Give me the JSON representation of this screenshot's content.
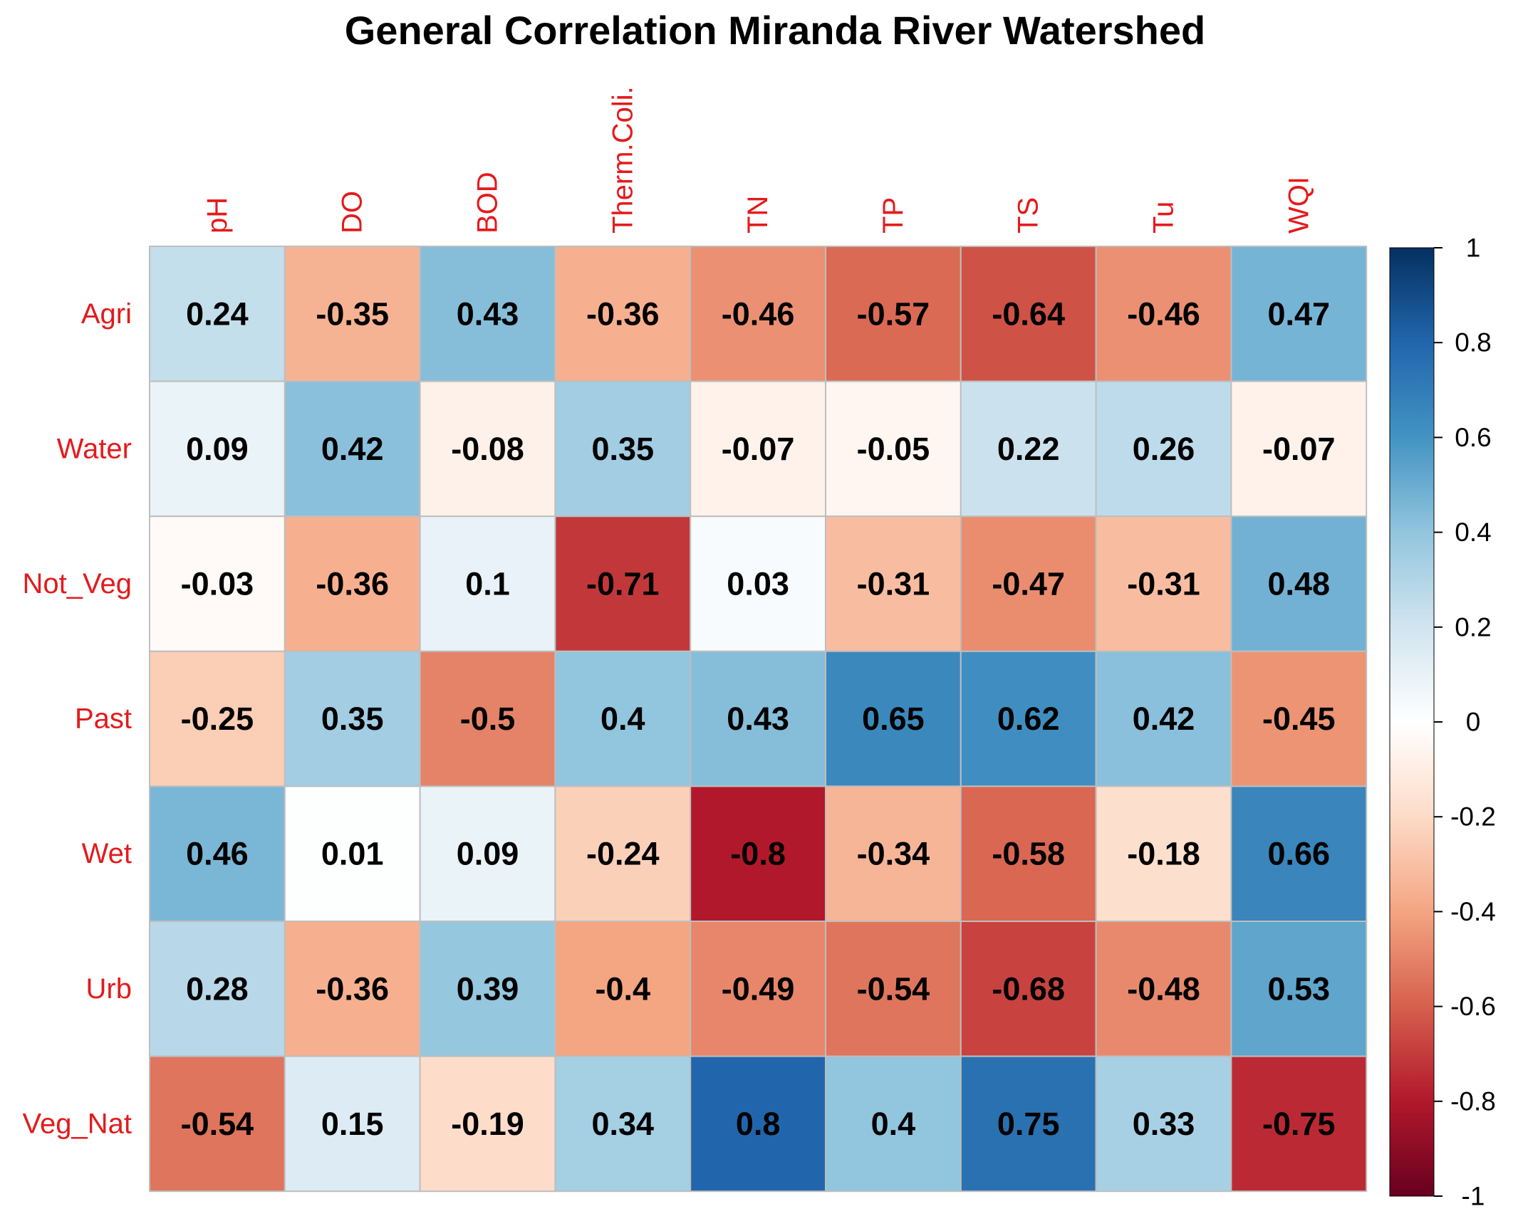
{
  "chart_data": {
    "type": "heatmap",
    "title": "General Correlation Miranda River Watershed",
    "columns": [
      "pH",
      "DO",
      "BOD",
      "Therm.Coli.",
      "TN",
      "TP",
      "TS",
      "Tu",
      "WQI"
    ],
    "rows": [
      "Agri",
      "Water",
      "Not_Veg",
      "Past",
      "Wet",
      "Urb",
      "Veg_Nat"
    ],
    "values": [
      [
        0.24,
        -0.35,
        0.43,
        -0.36,
        -0.46,
        -0.57,
        -0.64,
        -0.46,
        0.47
      ],
      [
        0.09,
        0.42,
        -0.08,
        0.35,
        -0.07,
        -0.05,
        0.22,
        0.26,
        -0.07
      ],
      [
        -0.03,
        -0.36,
        0.1,
        -0.71,
        0.03,
        -0.31,
        -0.47,
        -0.31,
        0.48
      ],
      [
        -0.25,
        0.35,
        -0.5,
        0.4,
        0.43,
        0.65,
        0.62,
        0.42,
        -0.45
      ],
      [
        0.46,
        0.01,
        0.09,
        -0.24,
        -0.8,
        -0.34,
        -0.58,
        -0.18,
        0.66
      ],
      [
        0.28,
        -0.36,
        0.39,
        -0.4,
        -0.49,
        -0.54,
        -0.68,
        -0.48,
        0.53
      ],
      [
        -0.54,
        0.15,
        -0.19,
        0.34,
        0.8,
        0.4,
        0.75,
        0.33,
        -0.75
      ]
    ],
    "value_labels": [
      [
        "0.24",
        "-0.35",
        "0.43",
        "-0.36",
        "-0.46",
        "-0.57",
        "-0.64",
        "-0.46",
        "0.47"
      ],
      [
        "0.09",
        "0.42",
        "-0.08",
        "0.35",
        "-0.07",
        "-0.05",
        "0.22",
        "0.26",
        "-0.07"
      ],
      [
        "-0.03",
        "-0.36",
        "0.1",
        "-0.71",
        "0.03",
        "-0.31",
        "-0.47",
        "-0.31",
        "0.48"
      ],
      [
        "-0.25",
        "0.35",
        "-0.5",
        "0.4",
        "0.43",
        "0.65",
        "0.62",
        "0.42",
        "-0.45"
      ],
      [
        "0.46",
        "0.01",
        "0.09",
        "-0.24",
        "-0.8",
        "-0.34",
        "-0.58",
        "-0.18",
        "0.66"
      ],
      [
        "0.28",
        "-0.36",
        "0.39",
        "-0.4",
        "-0.49",
        "-0.54",
        "-0.68",
        "-0.48",
        "0.53"
      ],
      [
        "-0.54",
        "0.15",
        "-0.19",
        "0.34",
        "0.8",
        "0.4",
        "0.75",
        "0.33",
        "-0.75"
      ]
    ],
    "colorbar": {
      "range": [
        -1,
        1
      ],
      "ticks": [
        1,
        0.8,
        0.6,
        0.4,
        0.2,
        0,
        -0.2,
        -0.4,
        -0.6,
        -0.8,
        -1
      ],
      "tick_labels": [
        "1",
        "0.8",
        "0.6",
        "0.4",
        "0.2",
        "0",
        "-0.2",
        "-0.4",
        "-0.6",
        "-0.8",
        "-1"
      ],
      "palette": [
        "#67001F",
        "#B2182B",
        "#D6604D",
        "#F4A582",
        "#FDDBC7",
        "#FFFFFF",
        "#D1E5F0",
        "#92C5DE",
        "#4393C3",
        "#2166AC",
        "#053061"
      ]
    },
    "label_color": "#E41A1C",
    "text_color": "#000000",
    "grid_color": "#BEBEBE",
    "legend_position": "right"
  }
}
